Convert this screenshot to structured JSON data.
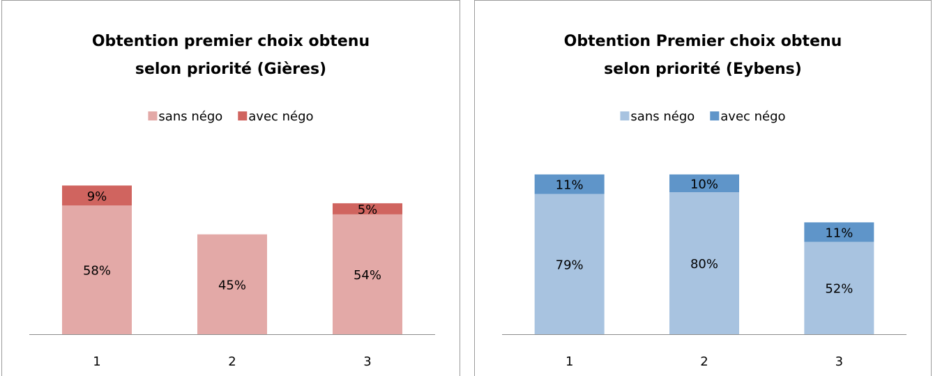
{
  "chart_data": [
    {
      "type": "stacked_bar",
      "title": [
        "Obtention premier choix obtenu",
        "selon priorité (Gières)"
      ],
      "categories": [
        "1",
        "2",
        "3"
      ],
      "ylim": [
        0,
        80
      ],
      "series": [
        {
          "name": "sans négo",
          "color": "#e3a9a7",
          "values": [
            58,
            45,
            54
          ],
          "value_labels": [
            "58%",
            "45%",
            "54%"
          ]
        },
        {
          "name": "avec négo",
          "color": "#d0645f",
          "values": [
            9,
            null,
            5
          ],
          "value_labels": [
            "9%",
            null,
            "5%"
          ]
        }
      ]
    },
    {
      "type": "stacked_bar",
      "title": [
        "Obtention Premier choix obtenu",
        "selon priorité (Eybens)"
      ],
      "categories": [
        "1",
        "2",
        "3"
      ],
      "ylim": [
        0,
        100
      ],
      "series": [
        {
          "name": "sans négo",
          "color": "#a8c3e0",
          "values": [
            79,
            80,
            52
          ],
          "value_labels": [
            "79%",
            "80%",
            "52%"
          ]
        },
        {
          "name": "avec négo",
          "color": "#5f95c9",
          "values": [
            11,
            10,
            11
          ],
          "value_labels": [
            "11%",
            "10%",
            "11%"
          ]
        }
      ]
    }
  ]
}
